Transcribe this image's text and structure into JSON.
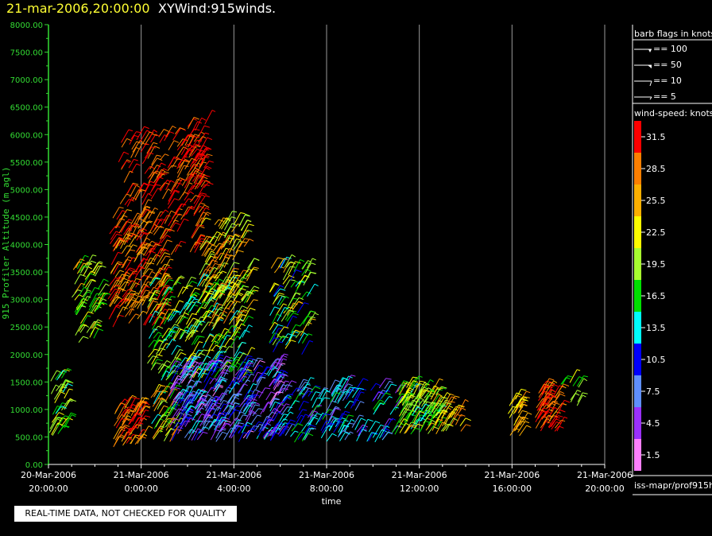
{
  "header": {
    "date_label": "21-mar-2006,20:00:00",
    "title": "XYWind:915winds."
  },
  "chart_data": {
    "type": "scatter",
    "title": "XYWind:915winds.",
    "subtitle": "21-mar-2006,20:00:00",
    "xlabel": "time",
    "ylabel": "915 Profiler Altitude (m agl)",
    "ylim": [
      0,
      8000
    ],
    "xlim": [
      0,
      24
    ],
    "y_ticks": [
      "0.00",
      "500.00",
      "1000.00",
      "1500.00",
      "2000.00",
      "2500.00",
      "3000.00",
      "3500.00",
      "4000.00",
      "4500.00",
      "5000.00",
      "5500.00",
      "6000.00",
      "6500.00",
      "7000.00",
      "7500.00",
      "8000.00"
    ],
    "x_ticks": [
      {
        "date": "20-Mar-2006",
        "time": "20:00:00",
        "hour": 0
      },
      {
        "date": "21-Mar-2006",
        "time": "0:00:00",
        "hour": 4
      },
      {
        "date": "21-Mar-2006",
        "time": "4:00:00",
        "hour": 8
      },
      {
        "date": "21-Mar-2006",
        "time": "8:00:00",
        "hour": 12
      },
      {
        "date": "21-Mar-2006",
        "time": "12:00:00",
        "hour": 16
      },
      {
        "date": "21-Mar-2006",
        "time": "16:00:00",
        "hour": 20
      },
      {
        "date": "21-Mar-2006",
        "time": "20:00:00",
        "hour": 24
      }
    ],
    "vertical_grid": true,
    "legend_position": "right",
    "barb_legend": {
      "title": "barb flags in knots",
      "entries": [
        "== 100",
        "== 50",
        "== 10",
        "== 5"
      ]
    },
    "colorbar": {
      "title": "wind-speed: knots",
      "levels": [
        {
          "label": "31.5",
          "color": "#ff0000"
        },
        {
          "label": "28.5",
          "color": "#ff7f00"
        },
        {
          "label": "25.5",
          "color": "#ffb000"
        },
        {
          "label": "22.5",
          "color": "#ffff00"
        },
        {
          "label": "19.5",
          "color": "#a8ff30"
        },
        {
          "label": "16.5",
          "color": "#00e000"
        },
        {
          "label": "13.5",
          "color": "#00ffff"
        },
        {
          "label": "10.5",
          "color": "#0000ff"
        },
        {
          "label": "7.5",
          "color": "#5f8fff"
        },
        {
          "label": "4.5",
          "color": "#9a30ff"
        },
        {
          "label": "1.5",
          "color": "#ff80ff"
        }
      ]
    },
    "clusters": [
      {
        "t0": 0.0,
        "t1": 0.7,
        "h0": 500,
        "h1": 1600,
        "s0": 14,
        "s1": 24,
        "n": 35
      },
      {
        "t0": 1.0,
        "t1": 2.2,
        "h0": 2200,
        "h1": 3600,
        "s0": 15,
        "s1": 25,
        "n": 60
      },
      {
        "t0": 2.5,
        "t1": 5.0,
        "h0": 2500,
        "h1": 4500,
        "s0": 24,
        "s1": 33,
        "n": 170
      },
      {
        "t0": 3.0,
        "t1": 6.6,
        "h0": 3800,
        "h1": 6000,
        "s0": 27,
        "s1": 34,
        "n": 170
      },
      {
        "t0": 5.4,
        "t1": 6.8,
        "h0": 5000,
        "h1": 6200,
        "s0": 29,
        "s1": 34,
        "n": 40
      },
      {
        "t0": 2.8,
        "t1": 4.0,
        "h0": 300,
        "h1": 1100,
        "s0": 25,
        "s1": 33,
        "n": 60
      },
      {
        "t0": 4.4,
        "t1": 5.5,
        "h0": 400,
        "h1": 1300,
        "s0": 14,
        "s1": 28,
        "n": 40
      },
      {
        "t0": 4.2,
        "t1": 8.5,
        "h0": 1500,
        "h1": 3300,
        "s0": 12,
        "s1": 24,
        "n": 220
      },
      {
        "t0": 5.2,
        "t1": 10.0,
        "h0": 400,
        "h1": 1800,
        "s0": 2,
        "s1": 14,
        "n": 320
      },
      {
        "t0": 6.5,
        "t1": 8.6,
        "h0": 2500,
        "h1": 4400,
        "s0": 18,
        "s1": 30,
        "n": 120
      },
      {
        "t0": 9.5,
        "t1": 11.2,
        "h0": 2000,
        "h1": 3600,
        "s0": 10,
        "s1": 26,
        "n": 80
      },
      {
        "t0": 10.0,
        "t1": 15.0,
        "h0": 400,
        "h1": 1400,
        "s0": 5,
        "s1": 16,
        "n": 140
      },
      {
        "t0": 15.0,
        "t1": 16.8,
        "h0": 550,
        "h1": 1400,
        "s0": 14,
        "s1": 26,
        "n": 110
      },
      {
        "t0": 16.5,
        "t1": 17.8,
        "h0": 600,
        "h1": 1100,
        "s0": 20,
        "s1": 30,
        "n": 30
      },
      {
        "t0": 19.8,
        "t1": 20.4,
        "h0": 500,
        "h1": 1200,
        "s0": 22,
        "s1": 28,
        "n": 25
      },
      {
        "t0": 21.0,
        "t1": 22.0,
        "h0": 600,
        "h1": 1400,
        "s0": 26,
        "s1": 33,
        "n": 60
      },
      {
        "t0": 22.0,
        "t1": 22.9,
        "h0": 1000,
        "h1": 1500,
        "s0": 16,
        "s1": 22,
        "n": 10
      }
    ]
  },
  "footer": {
    "qc_note": "REAL-TIME DATA, NOT CHECKED FOR QUALITY",
    "path": "iss-mapr/prof915h"
  }
}
